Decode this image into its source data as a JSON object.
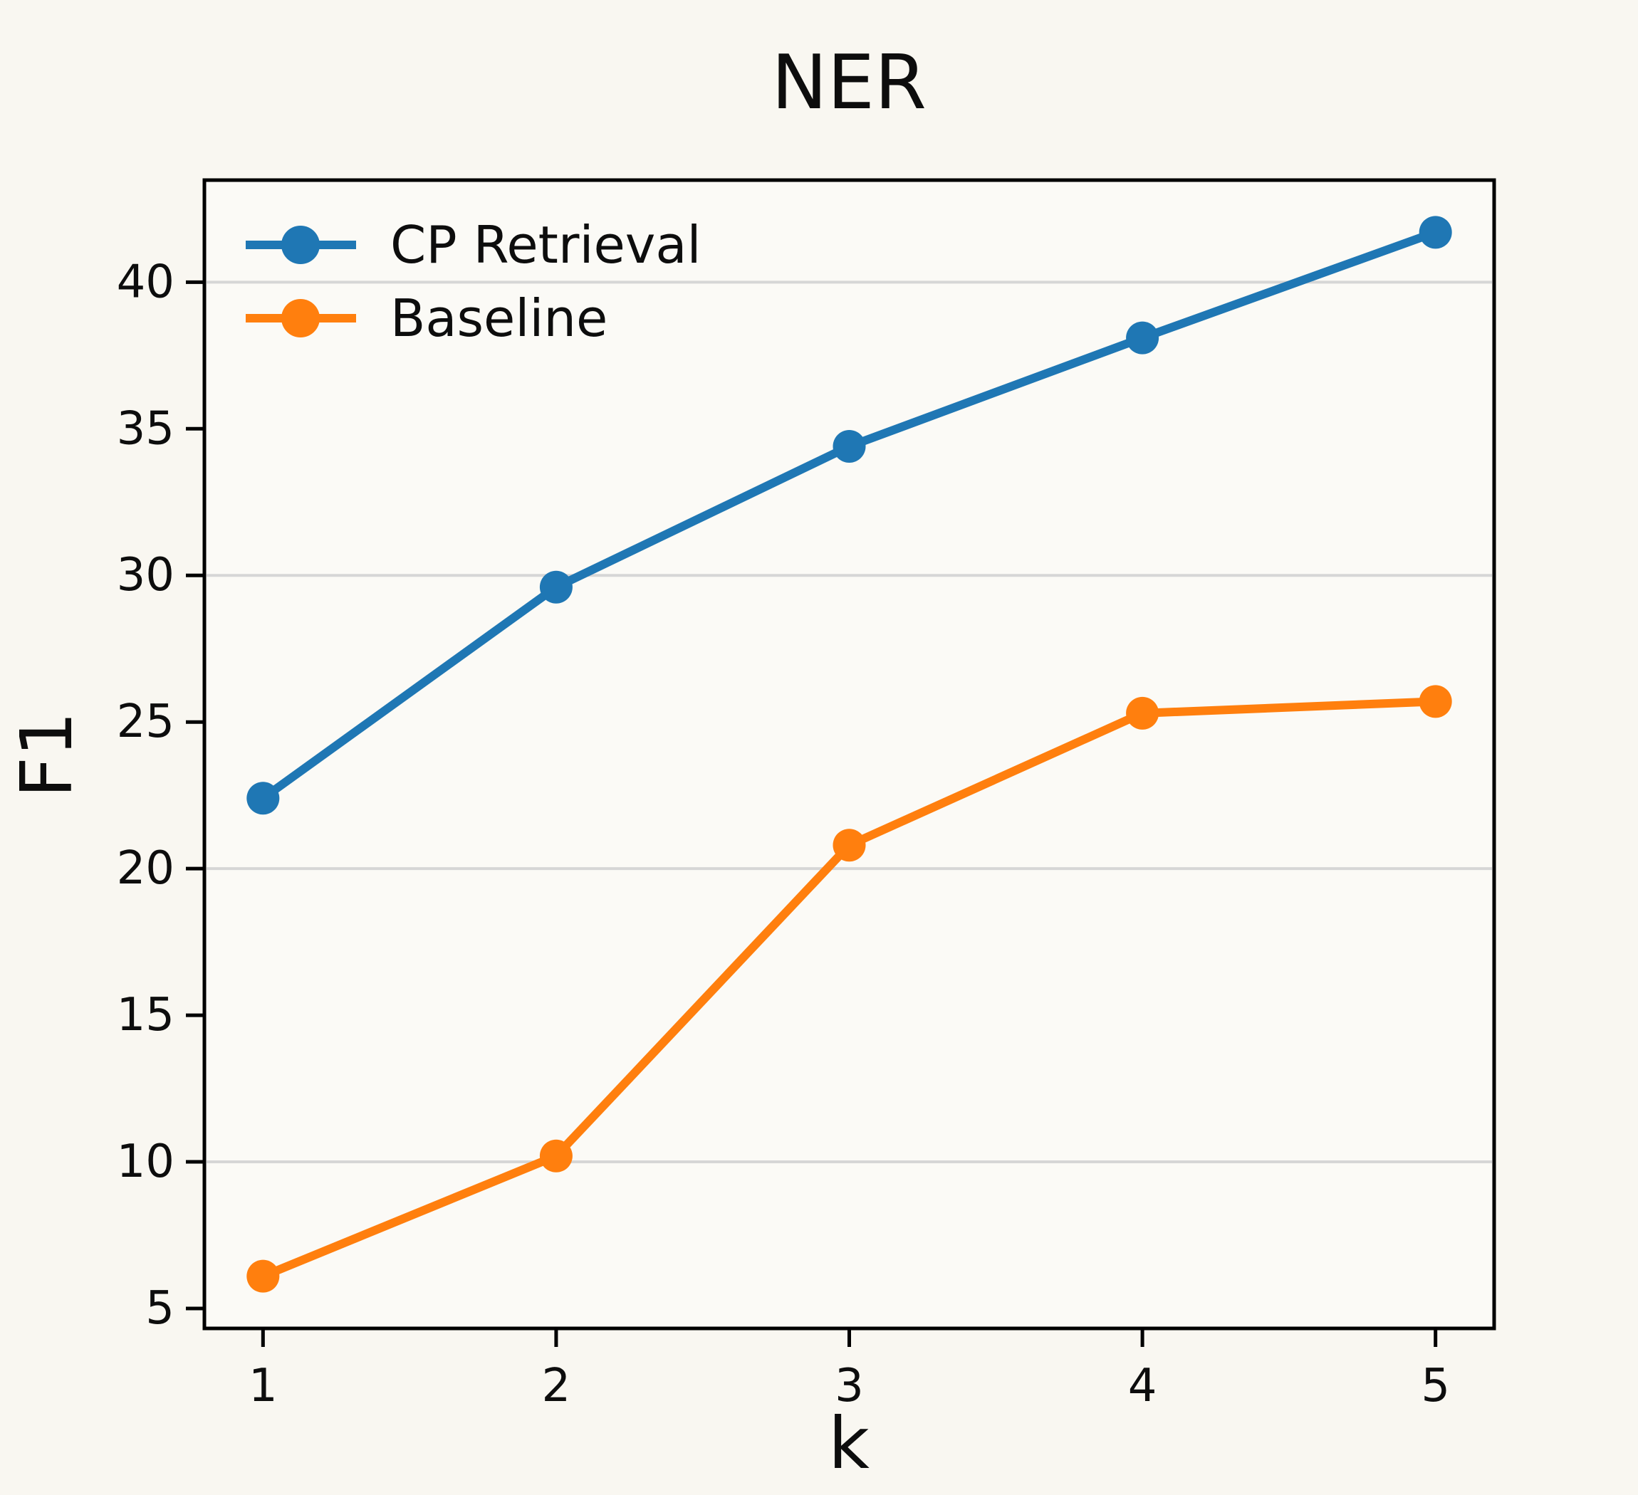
{
  "page": {
    "background": "#f9f7f1"
  },
  "chart_data": {
    "type": "line",
    "title": "NER",
    "xlabel": "k",
    "ylabel": "F1",
    "x": [
      1,
      2,
      3,
      4,
      5
    ],
    "series": [
      {
        "name": "CP Retrieval",
        "color": "#1f77b4",
        "values": [
          22.4,
          29.6,
          34.4,
          38.1,
          41.7
        ]
      },
      {
        "name": "Baseline",
        "color": "#ff7f0e",
        "values": [
          6.1,
          10.2,
          20.8,
          25.3,
          25.7
        ]
      }
    ],
    "xlim": [
      0.8,
      5.2
    ],
    "ylim": [
      4.32,
      43.48
    ],
    "xticks": [
      1,
      2,
      3,
      4,
      5
    ],
    "yticks": [
      5,
      10,
      15,
      20,
      25,
      30,
      35,
      40
    ],
    "gridlines_y": [
      10,
      20,
      30,
      40
    ],
    "grid": "horizontal-major",
    "legend_position": "upper-left",
    "axes_background": "#fbfaf6",
    "grid_color": "#d6d6d6",
    "axis_color": "#000000",
    "tick_font_px": 64,
    "marker_radius": 23,
    "line_width": 12
  }
}
